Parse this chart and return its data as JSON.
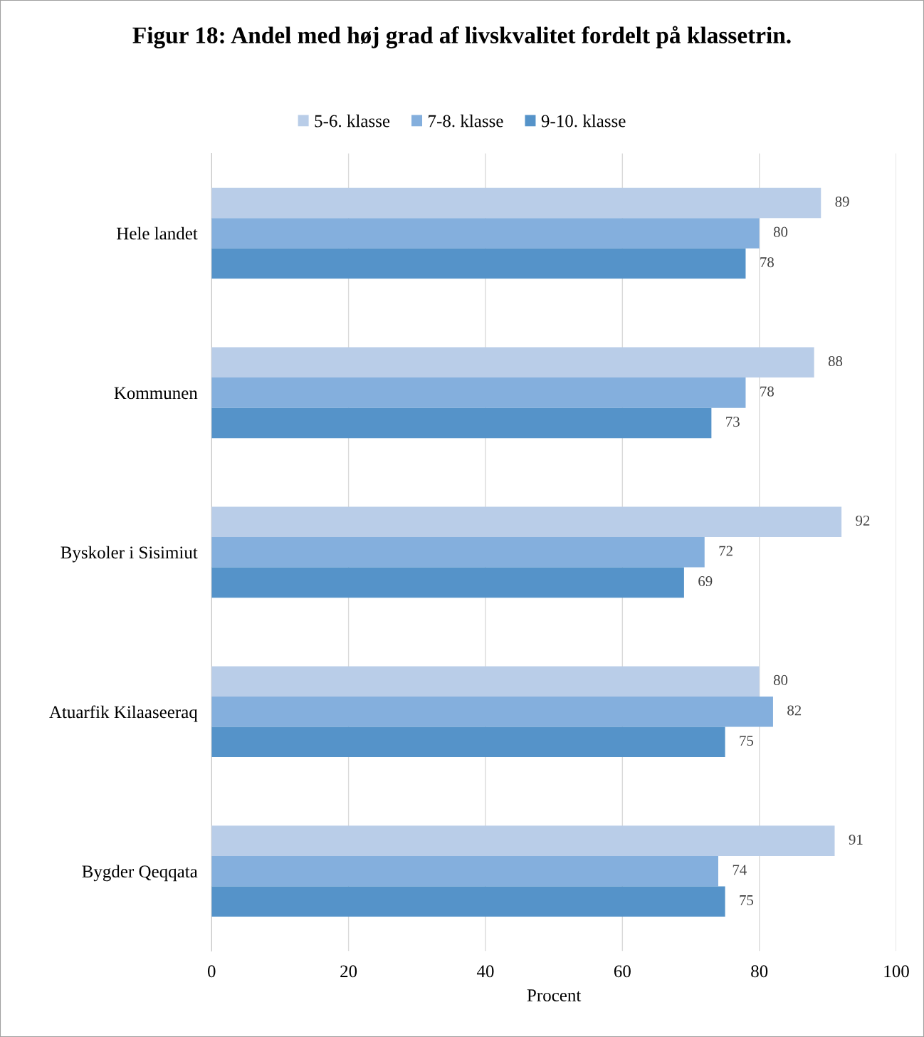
{
  "chart_data": {
    "type": "bar",
    "orientation": "horizontal",
    "title": "Figur 18: Andel med høj grad af livskvalitet fordelt på klassetrin.",
    "xlabel": "Procent",
    "categories": [
      "Hele landet",
      "Kommunen",
      "Byskoler i Sisimiut",
      "Atuarfik Kilaaseeraq",
      "Bygder Qeqqata"
    ],
    "series": [
      {
        "name": "5-6. klasse",
        "color": "#b9cde8",
        "values": [
          89,
          88,
          92,
          80,
          91
        ]
      },
      {
        "name": "7-8. klasse",
        "color": "#84afdd",
        "values": [
          80,
          78,
          72,
          82,
          74
        ]
      },
      {
        "name": "9-10. klasse",
        "color": "#5593c9",
        "values": [
          78,
          73,
          69,
          75,
          75
        ]
      }
    ],
    "xlim": [
      0,
      100
    ],
    "xticks": [
      0,
      20,
      40,
      60,
      80,
      100
    ],
    "grid": "x",
    "legend": "top",
    "data_labels": true
  }
}
